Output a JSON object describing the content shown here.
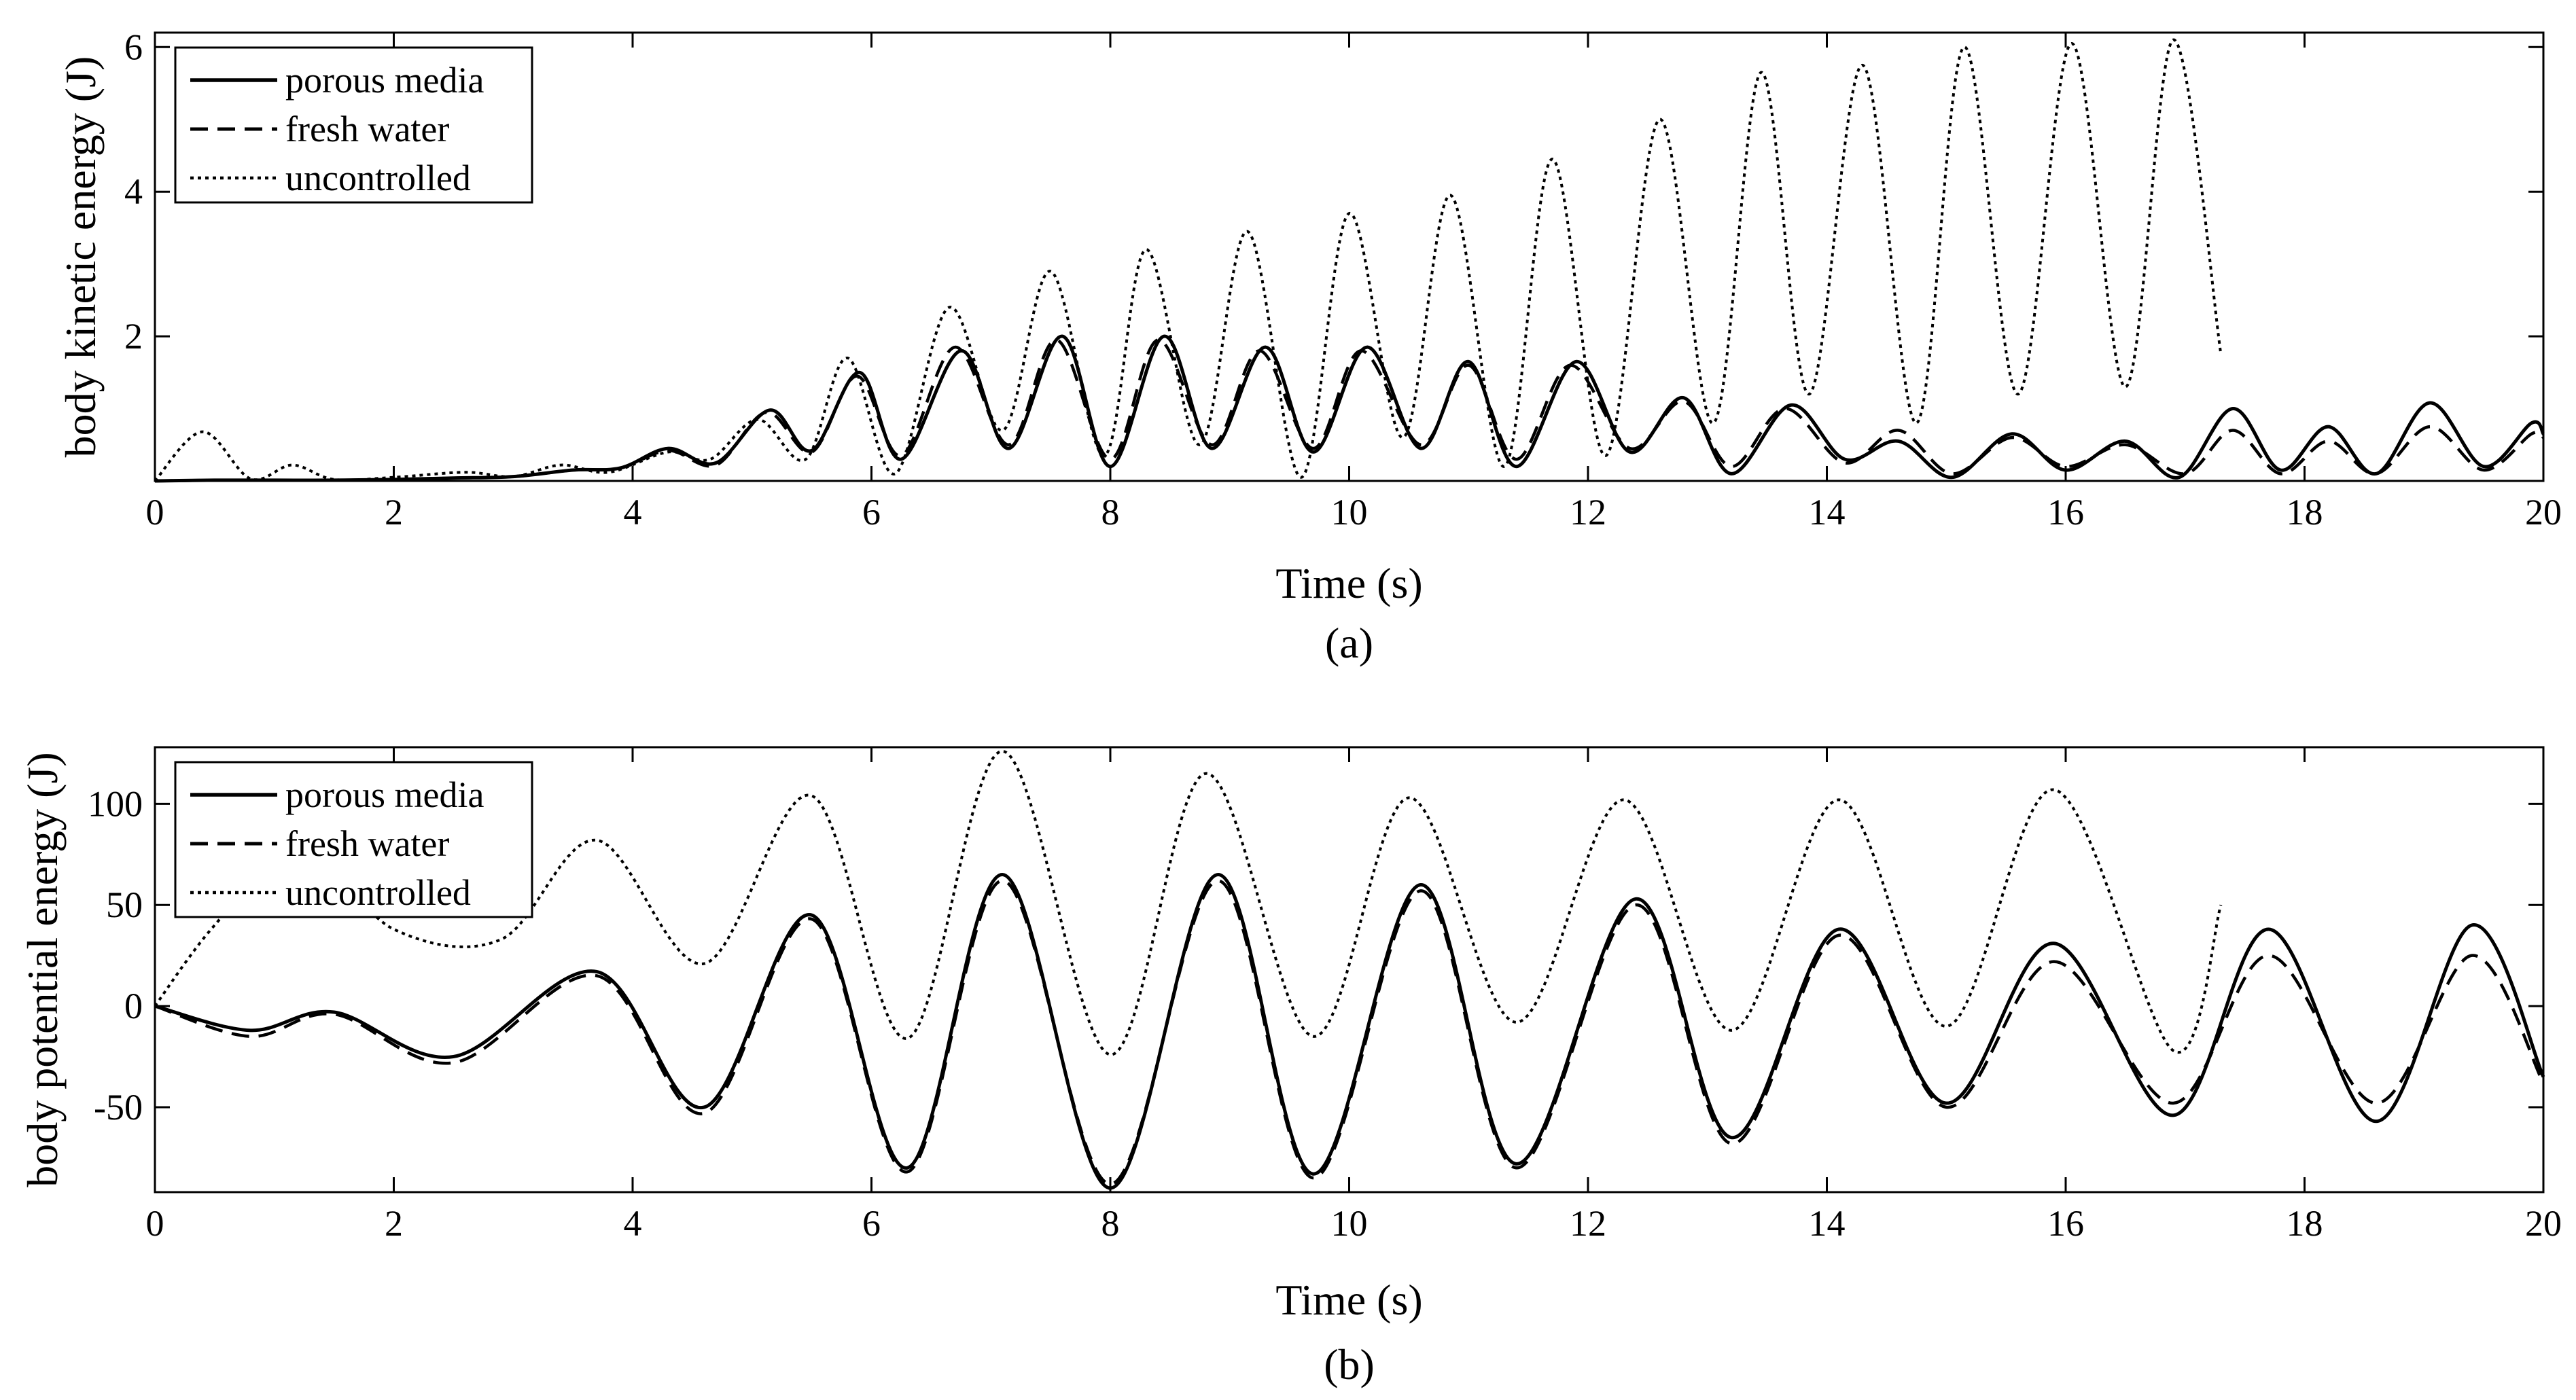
{
  "chart_data": [
    {
      "type": "line",
      "caption": "(a)",
      "xlabel": "Time (s)",
      "ylabel": "body kinetic energy (J)",
      "xlim": [
        0,
        20
      ],
      "ylim": [
        0,
        6.2
      ],
      "xticks": [
        0,
        2,
        4,
        6,
        8,
        10,
        12,
        14,
        16,
        18,
        20
      ],
      "yticks": [
        2,
        4,
        6
      ],
      "legend_position": "top-left",
      "series": [
        {
          "name": "porous media",
          "style": "solid",
          "points": [
            [
              0,
              0
            ],
            [
              0.5,
              0.01
            ],
            [
              1,
              0.01
            ],
            [
              1.5,
              0.01
            ],
            [
              2,
              0.02
            ],
            [
              2.5,
              0.04
            ],
            [
              3,
              0.06
            ],
            [
              3.5,
              0.15
            ],
            [
              3.9,
              0.18
            ],
            [
              4.3,
              0.45
            ],
            [
              4.7,
              0.25
            ],
            [
              5.15,
              0.98
            ],
            [
              5.5,
              0.42
            ],
            [
              5.9,
              1.5
            ],
            [
              6.25,
              0.3
            ],
            [
              6.75,
              1.8
            ],
            [
              7.15,
              0.45
            ],
            [
              7.6,
              2.0
            ],
            [
              8.0,
              0.2
            ],
            [
              8.45,
              2.0
            ],
            [
              8.85,
              0.45
            ],
            [
              9.3,
              1.85
            ],
            [
              9.7,
              0.4
            ],
            [
              10.15,
              1.85
            ],
            [
              10.6,
              0.45
            ],
            [
              11.0,
              1.65
            ],
            [
              11.4,
              0.2
            ],
            [
              11.9,
              1.65
            ],
            [
              12.35,
              0.4
            ],
            [
              12.8,
              1.15
            ],
            [
              13.2,
              0.1
            ],
            [
              13.7,
              1.05
            ],
            [
              14.15,
              0.3
            ],
            [
              14.6,
              0.55
            ],
            [
              15.05,
              0.05
            ],
            [
              15.55,
              0.65
            ],
            [
              16.0,
              0.15
            ],
            [
              16.5,
              0.55
            ],
            [
              16.95,
              0.05
            ],
            [
              17.4,
              1.0
            ],
            [
              17.8,
              0.15
            ],
            [
              18.2,
              0.75
            ],
            [
              18.6,
              0.1
            ],
            [
              19.05,
              1.08
            ],
            [
              19.5,
              0.2
            ],
            [
              19.9,
              0.8
            ],
            [
              20,
              0.65
            ]
          ]
        },
        {
          "name": "fresh water",
          "style": "dashed",
          "points": [
            [
              0,
              0
            ],
            [
              0.5,
              0.01
            ],
            [
              1,
              0.01
            ],
            [
              1.5,
              0.01
            ],
            [
              2,
              0.02
            ],
            [
              2.5,
              0.04
            ],
            [
              3,
              0.06
            ],
            [
              3.5,
              0.15
            ],
            [
              3.9,
              0.18
            ],
            [
              4.3,
              0.42
            ],
            [
              4.7,
              0.22
            ],
            [
              5.12,
              0.95
            ],
            [
              5.5,
              0.4
            ],
            [
              5.88,
              1.45
            ],
            [
              6.25,
              0.35
            ],
            [
              6.7,
              1.85
            ],
            [
              7.15,
              0.5
            ],
            [
              7.55,
              1.95
            ],
            [
              8.0,
              0.3
            ],
            [
              8.4,
              1.95
            ],
            [
              8.85,
              0.5
            ],
            [
              9.25,
              1.8
            ],
            [
              9.7,
              0.45
            ],
            [
              10.1,
              1.8
            ],
            [
              10.6,
              0.5
            ],
            [
              11.0,
              1.6
            ],
            [
              11.4,
              0.3
            ],
            [
              11.85,
              1.6
            ],
            [
              12.35,
              0.45
            ],
            [
              12.8,
              1.1
            ],
            [
              13.2,
              0.2
            ],
            [
              13.65,
              1.0
            ],
            [
              14.15,
              0.25
            ],
            [
              14.6,
              0.7
            ],
            [
              15.05,
              0.1
            ],
            [
              15.55,
              0.6
            ],
            [
              16.0,
              0.2
            ],
            [
              16.5,
              0.5
            ],
            [
              17.0,
              0.1
            ],
            [
              17.4,
              0.7
            ],
            [
              17.8,
              0.1
            ],
            [
              18.2,
              0.55
            ],
            [
              18.6,
              0.1
            ],
            [
              19.05,
              0.75
            ],
            [
              19.5,
              0.15
            ],
            [
              19.9,
              0.65
            ],
            [
              20,
              0.6
            ]
          ]
        },
        {
          "name": "uncontrolled",
          "style": "dotted",
          "points": [
            [
              0,
              0
            ],
            [
              0.4,
              0.68
            ],
            [
              0.8,
              0.03
            ],
            [
              1.15,
              0.22
            ],
            [
              1.5,
              0.02
            ],
            [
              2.0,
              0.05
            ],
            [
              2.6,
              0.12
            ],
            [
              3.0,
              0.06
            ],
            [
              3.4,
              0.22
            ],
            [
              3.8,
              0.12
            ],
            [
              4.3,
              0.4
            ],
            [
              4.65,
              0.3
            ],
            [
              5.05,
              0.85
            ],
            [
              5.45,
              0.3
            ],
            [
              5.8,
              1.7
            ],
            [
              6.2,
              0.1
            ],
            [
              6.65,
              2.4
            ],
            [
              7.1,
              0.7
            ],
            [
              7.5,
              2.9
            ],
            [
              7.95,
              0.35
            ],
            [
              8.3,
              3.2
            ],
            [
              8.75,
              0.5
            ],
            [
              9.15,
              3.45
            ],
            [
              9.6,
              0.05
            ],
            [
              10.0,
              3.7
            ],
            [
              10.45,
              0.6
            ],
            [
              10.85,
              3.95
            ],
            [
              11.3,
              0.2
            ],
            [
              11.7,
              4.45
            ],
            [
              12.15,
              0.35
            ],
            [
              12.6,
              5.0
            ],
            [
              13.05,
              0.8
            ],
            [
              13.45,
              5.65
            ],
            [
              13.85,
              1.2
            ],
            [
              14.3,
              5.75
            ],
            [
              14.75,
              0.8
            ],
            [
              15.15,
              6.0
            ],
            [
              15.6,
              1.2
            ],
            [
              16.05,
              6.05
            ],
            [
              16.5,
              1.3
            ],
            [
              16.9,
              6.1
            ],
            [
              17.3,
              1.75
            ]
          ]
        }
      ]
    },
    {
      "type": "line",
      "caption": "(b)",
      "xlabel": "Time (s)",
      "ylabel": "body potential energy (J)",
      "xlim": [
        0,
        20
      ],
      "ylim": [
        -92,
        128
      ],
      "xticks": [
        0,
        2,
        4,
        6,
        8,
        10,
        12,
        14,
        16,
        18,
        20
      ],
      "yticks": [
        -50,
        0,
        50,
        100
      ],
      "legend_position": "top-left",
      "series": [
        {
          "name": "porous media",
          "style": "solid",
          "points": [
            [
              0,
              0
            ],
            [
              0.8,
              -12
            ],
            [
              1.5,
              -3
            ],
            [
              2.5,
              -25
            ],
            [
              3.7,
              17
            ],
            [
              4.6,
              -50
            ],
            [
              5.5,
              45
            ],
            [
              6.3,
              -80
            ],
            [
              7.1,
              65
            ],
            [
              8.0,
              -90
            ],
            [
              8.9,
              65
            ],
            [
              9.7,
              -83
            ],
            [
              10.6,
              60
            ],
            [
              11.4,
              -78
            ],
            [
              12.4,
              53
            ],
            [
              13.2,
              -65
            ],
            [
              14.1,
              38
            ],
            [
              15.0,
              -48
            ],
            [
              15.9,
              31
            ],
            [
              16.9,
              -54
            ],
            [
              17.7,
              38
            ],
            [
              18.6,
              -57
            ],
            [
              19.4,
              40
            ],
            [
              20,
              -35
            ]
          ]
        },
        {
          "name": "fresh water",
          "style": "dashed",
          "points": [
            [
              0,
              0
            ],
            [
              0.8,
              -15
            ],
            [
              1.5,
              -4
            ],
            [
              2.5,
              -28
            ],
            [
              3.7,
              15
            ],
            [
              4.6,
              -53
            ],
            [
              5.5,
              43
            ],
            [
              6.3,
              -82
            ],
            [
              7.1,
              62
            ],
            [
              8.0,
              -88
            ],
            [
              8.9,
              62
            ],
            [
              9.7,
              -85
            ],
            [
              10.6,
              57
            ],
            [
              11.4,
              -80
            ],
            [
              12.4,
              50
            ],
            [
              13.2,
              -68
            ],
            [
              14.1,
              35
            ],
            [
              15.0,
              -50
            ],
            [
              15.9,
              22
            ],
            [
              16.9,
              -48
            ],
            [
              17.7,
              25
            ],
            [
              18.6,
              -48
            ],
            [
              19.4,
              25
            ],
            [
              20,
              -38
            ]
          ]
        },
        {
          "name": "uncontrolled",
          "style": "dotted",
          "points": [
            [
              0,
              0
            ],
            [
              0.5,
              40
            ],
            [
              1.2,
              80
            ],
            [
              2.0,
              38
            ],
            [
              2.9,
              33
            ],
            [
              3.7,
              82
            ],
            [
              4.6,
              21
            ],
            [
              5.5,
              104
            ],
            [
              6.3,
              -16
            ],
            [
              7.1,
              126
            ],
            [
              8.0,
              -24
            ],
            [
              8.8,
              115
            ],
            [
              9.7,
              -15
            ],
            [
              10.5,
              103
            ],
            [
              11.4,
              -8
            ],
            [
              12.3,
              102
            ],
            [
              13.2,
              -12
            ],
            [
              14.1,
              102
            ],
            [
              15.0,
              -10
            ],
            [
              15.9,
              107
            ],
            [
              16.9,
              -22
            ],
            [
              17.3,
              50
            ]
          ]
        }
      ]
    }
  ]
}
